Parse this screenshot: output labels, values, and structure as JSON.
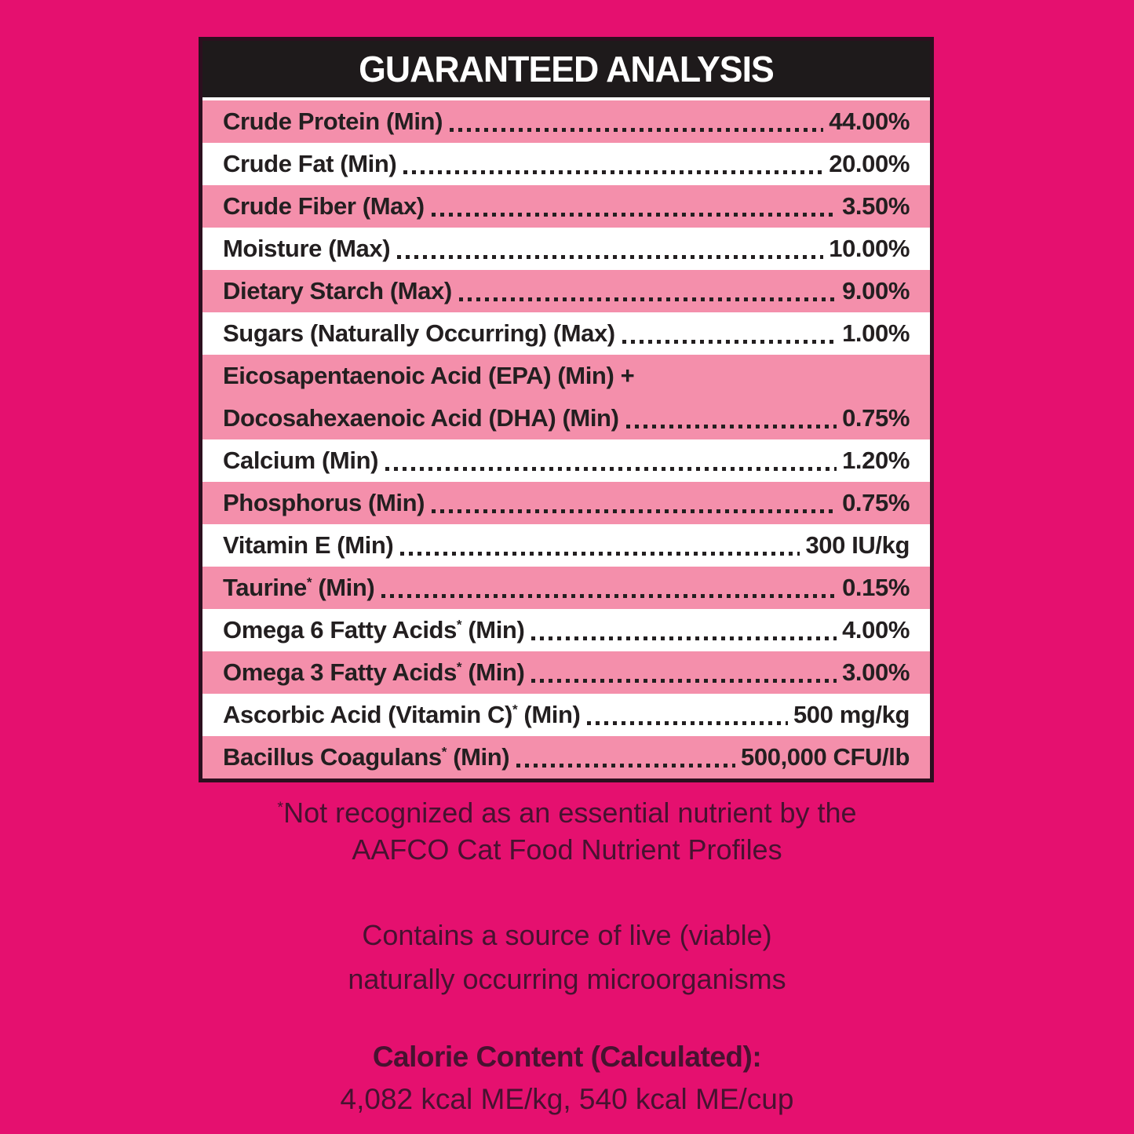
{
  "label": {
    "title": "GUARANTEED ANALYSIS",
    "rows": [
      {
        "name": "Crude Protein (Min)",
        "value": "44.00%",
        "shade": "pink"
      },
      {
        "name": "Crude Fat (Min)",
        "value": "20.00%",
        "shade": "white"
      },
      {
        "name": "Crude Fiber (Max)",
        "value": "3.50%",
        "shade": "pink"
      },
      {
        "name": "Moisture (Max)",
        "value": "10.00%",
        "shade": "white"
      },
      {
        "name": "Dietary Starch (Max)",
        "value": "9.00%",
        "shade": "pink"
      },
      {
        "name": "Sugars (Naturally Occurring) (Max)",
        "value": "1.00%",
        "shade": "white"
      },
      {
        "name_line1": "Eicosapentaenoic Acid (EPA) (Min) +",
        "name": "Docosahexaenoic Acid (DHA) (Min)",
        "value": "0.75%",
        "shade": "pink"
      },
      {
        "name": "Calcium (Min)",
        "value": "1.20%",
        "shade": "white"
      },
      {
        "name": "Phosphorus (Min)",
        "value": "0.75%",
        "shade": "pink"
      },
      {
        "name": "Vitamin E (Min)",
        "value": "300 IU/kg",
        "shade": "white"
      },
      {
        "name": "Taurine* (Min)",
        "value": "0.15%",
        "shade": "pink"
      },
      {
        "name": "Omega 6 Fatty Acids* (Min)",
        "value": "4.00%",
        "shade": "white"
      },
      {
        "name": "Omega 3 Fatty Acids* (Min)",
        "value": "3.00%",
        "shade": "pink"
      },
      {
        "name": "Ascorbic Acid (Vitamin C)* (Min)",
        "value": "500 mg/kg",
        "shade": "white"
      },
      {
        "name": "Bacillus Coagulans* (Min)",
        "value": "500,000 CFU/lb",
        "shade": "pink"
      }
    ],
    "footnote_line1": "*Not recognized as an essential nutrient by the",
    "footnote_line2": "AAFCO Cat Food Nutrient Profiles",
    "micro_line1": "Contains a source of live (viable)",
    "micro_line2": "naturally occurring microorganisms",
    "calorie_heading": "Calorie Content (Calculated):",
    "calorie_values": "4,082 kcal ME/kg, 540 kcal ME/cup"
  },
  "colors": {
    "background": "#e5106f",
    "pink_row": "#f48fab",
    "white_row": "#ffffff",
    "row_text": "#231f20",
    "header_background": "#1e1a1b",
    "header_text": "#ffffff",
    "table_border": "#2d0f1f",
    "footer_text": "#471230"
  }
}
